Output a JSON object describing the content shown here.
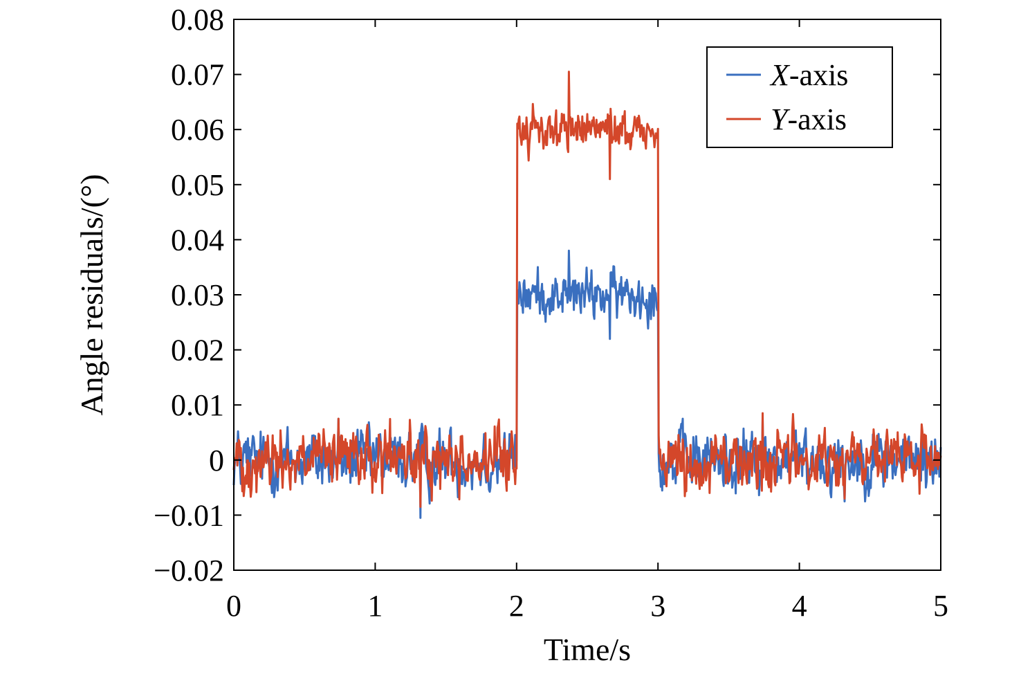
{
  "chart_data": {
    "type": "line",
    "title": "",
    "xlabel": "Time/s",
    "ylabel": "Angle residuals/(°)",
    "xlim": [
      0,
      5
    ],
    "ylim": [
      -0.02,
      0.08
    ],
    "xticks": [
      0,
      1,
      2,
      3,
      4,
      5
    ],
    "xtick_labels": [
      "0",
      "1",
      "2",
      "3",
      "4",
      "5"
    ],
    "yticks": [
      -0.02,
      -0.01,
      0,
      0.01,
      0.02,
      0.03,
      0.04,
      0.05,
      0.06,
      0.07,
      0.08
    ],
    "ytick_labels": [
      "−0.02",
      "−0.01",
      "0",
      "0.01",
      "0.02",
      "0.03",
      "0.04",
      "0.05",
      "0.06",
      "0.07",
      "0.08"
    ],
    "grid": false,
    "legend_position": "top-right",
    "series": [
      {
        "name": "X-axis",
        "name_italic": "X",
        "name_rest": "-axis",
        "color": "#3a6fbf",
        "segments": [
          {
            "t_start": 0,
            "t_end": 2,
            "mean": 0.0,
            "amplitude": 0.0045,
            "min": -0.0105,
            "max": 0.0075
          },
          {
            "t_start": 2,
            "t_end": 3,
            "mean": 0.03,
            "amplitude": 0.0035,
            "min": 0.022,
            "max": 0.038
          },
          {
            "t_start": 3,
            "t_end": 5,
            "mean": 0.0,
            "amplitude": 0.0045,
            "min": -0.0075,
            "max": 0.0075
          }
        ]
      },
      {
        "name": "Y-axis",
        "name_italic": "Y",
        "name_rest": "-axis",
        "color": "#d4472a",
        "segments": [
          {
            "t_start": 0,
            "t_end": 2,
            "mean": 0.0,
            "amplitude": 0.0045,
            "min": -0.0085,
            "max": 0.0075
          },
          {
            "t_start": 2,
            "t_end": 3,
            "mean": 0.06,
            "amplitude": 0.003,
            "min": 0.051,
            "max": 0.0705
          },
          {
            "t_start": 3,
            "t_end": 5,
            "mean": 0.0,
            "amplitude": 0.0045,
            "min": -0.007,
            "max": 0.0085
          }
        ]
      }
    ]
  }
}
